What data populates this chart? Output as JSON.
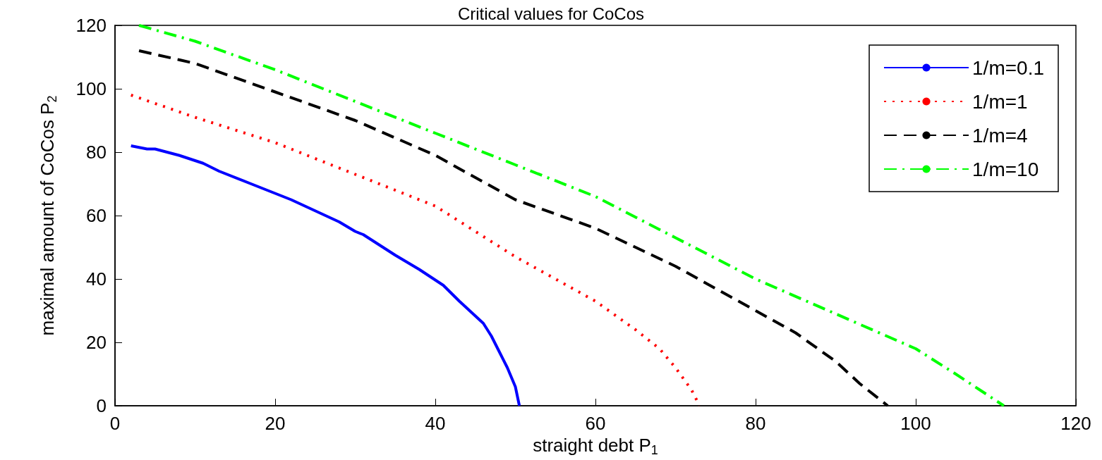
{
  "chart_data": {
    "type": "line",
    "title": "Critical values for CoCos",
    "xlabel": "straight debt P$_{1}$",
    "ylabel": "maximal amount of CoCos P$_{2}$",
    "xlim": [
      0,
      120
    ],
    "xticks": [
      0,
      20,
      40,
      60,
      80,
      100,
      120
    ],
    "ylim": [
      0,
      120
    ],
    "yticks": [
      0,
      20,
      40,
      60,
      80,
      100,
      120
    ],
    "grid": false,
    "legend": "top right",
    "marker": "none",
    "series": [
      {
        "name": "1/m=0.1",
        "color": "#0000ff",
        "line_style": "solid",
        "x": [
          2,
          3,
          4,
          5,
          8,
          11,
          13,
          17,
          18,
          20,
          22,
          25,
          28,
          30,
          31,
          35,
          38,
          41,
          43,
          46,
          47,
          48,
          49,
          50,
          50.5
        ],
        "values": [
          82,
          81.5,
          81,
          81,
          79,
          76.5,
          74,
          70,
          69,
          67,
          65,
          61.5,
          58,
          55,
          54,
          47.5,
          43,
          38,
          33,
          26,
          22,
          17,
          12,
          6,
          0
        ]
      },
      {
        "name": "1/m=1",
        "color": "#ff0000",
        "line_style": "dotted",
        "x": [
          2,
          10,
          20,
          30,
          40,
          50,
          55,
          60,
          65,
          68,
          70,
          72,
          73
        ],
        "values": [
          98,
          91,
          83,
          73,
          63,
          47,
          40,
          33,
          24,
          18,
          12,
          5,
          0
        ]
      },
      {
        "name": "1/m=4",
        "color": "#000000",
        "line_style": "dashed",
        "x": [
          3,
          10,
          20,
          30,
          40,
          50,
          60,
          70,
          80,
          85,
          90,
          93,
          96.5
        ],
        "values": [
          112,
          108,
          99,
          90,
          79,
          65,
          56,
          44,
          30,
          23,
          14,
          7,
          0
        ]
      },
      {
        "name": "1/m=10",
        "color": "#00ff00",
        "line_style": "dashdot",
        "x": [
          3,
          10,
          20,
          30,
          40,
          50,
          60,
          70,
          80,
          90,
          100,
          105,
          108,
          111
        ],
        "values": [
          120,
          115,
          106,
          96,
          86,
          76,
          66,
          53,
          40,
          29,
          18,
          10,
          5,
          0
        ]
      }
    ]
  }
}
